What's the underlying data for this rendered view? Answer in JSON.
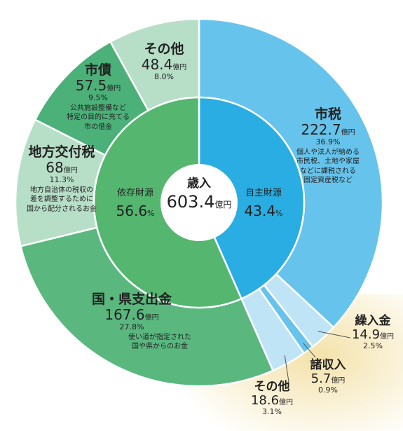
{
  "colors": {
    "own_outer": "#66c3ec",
    "own_inner": "#29ade2",
    "own_minor": "#bfe4f6",
    "dep_inner": "#54b66f",
    "dep_dark": "#4cb179",
    "dep_light": "#b7dec7",
    "dep_main": "#5ab87f",
    "glow": "#f3dfa0"
  },
  "center": {
    "title": "歳入",
    "value": "603.4",
    "unit": "億円"
  },
  "chart_data": {
    "type": "pie",
    "title": "歳入",
    "total": 603.4,
    "unit": "億円",
    "inner": [
      {
        "name": "自主財源",
        "pct_value": 43.4,
        "pct": "43.4",
        "pct_unit": "%",
        "color_key": "own_inner"
      },
      {
        "name": "依存財源",
        "pct_value": 56.6,
        "pct": "56.6",
        "pct_unit": "%",
        "color_key": "dep_inner"
      }
    ],
    "outer": [
      {
        "id": "shizei",
        "name": "市税",
        "value": 222.7,
        "amount": "222.7",
        "unit": "億円",
        "pct": "36.9%",
        "desc": [
          "個人や法人が納める",
          "市民税、土地や家屋",
          "などに課税される",
          "固定資産税など"
        ],
        "color_key": "own_outer"
      },
      {
        "id": "kurinyu",
        "name": "繰入金",
        "value": 14.9,
        "amount": "14.9",
        "unit": "億円",
        "pct": "2.5%",
        "desc": [],
        "color_key": "own_minor"
      },
      {
        "id": "shoshunyu",
        "name": "諸収入",
        "value": 5.7,
        "amount": "5.7",
        "unit": "億円",
        "pct": "0.9%",
        "desc": [],
        "color_key": "own_outer"
      },
      {
        "id": "sonota1",
        "name": "その他",
        "value": 18.6,
        "amount": "18.6",
        "unit": "億円",
        "pct": "3.1%",
        "desc": [],
        "color_key": "own_minor"
      },
      {
        "id": "kuni",
        "name": "国・県支出金",
        "value": 167.6,
        "amount": "167.6",
        "unit": "億円",
        "pct": "27.8%",
        "desc": [
          "使い道が指定された",
          "国や県からのお金"
        ],
        "color_key": "dep_main"
      },
      {
        "id": "kofu",
        "name": "地方交付税",
        "value": 68,
        "amount": "68",
        "unit": "億円",
        "pct": "11.3%",
        "desc": [
          "地方自治体の税収の",
          "差を調整するために",
          "国から配分されるお金"
        ],
        "color_key": "dep_light"
      },
      {
        "id": "shisai",
        "name": "市債",
        "value": 57.5,
        "amount": "57.5",
        "unit": "億円",
        "pct": "9.5%",
        "desc": [
          "公共施設整備など",
          "特定の目的に充てる",
          "市の借金"
        ],
        "color_key": "dep_dark"
      },
      {
        "id": "sonota2",
        "name": "その他",
        "value": 48.4,
        "amount": "48.4",
        "unit": "億円",
        "pct": "8.0%",
        "desc": [],
        "color_key": "dep_light"
      }
    ]
  }
}
